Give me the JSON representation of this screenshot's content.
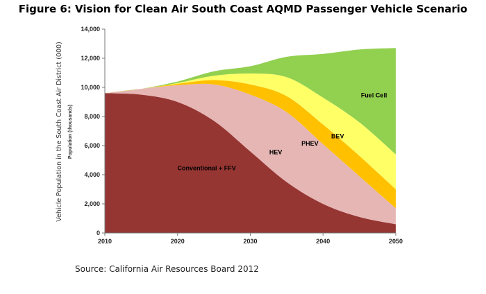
{
  "figure": {
    "title": "Figure 6: Vision for Clean Air South Coast AQMD Passenger Vehicle Scenario",
    "source": "Source: California Air Resources Board 2012"
  },
  "chart_data": {
    "type": "area",
    "stacked": true,
    "title": "",
    "xlabel": "",
    "ylabel": "Vehicle Population in the South Coast Air District (000)",
    "ylabel_secondary": "Population (thousands)",
    "x": [
      2010,
      2015,
      2020,
      2025,
      2030,
      2035,
      2040,
      2045,
      2050
    ],
    "xlim": [
      2010,
      2050
    ],
    "ylim": [
      0,
      14000
    ],
    "x_ticks": [
      2010,
      2020,
      2030,
      2040,
      2050
    ],
    "y_ticks": [
      0,
      2000,
      4000,
      6000,
      8000,
      10000,
      12000,
      14000
    ],
    "y_tick_labels": [
      "0",
      "2,000",
      "4,000",
      "6,000",
      "8,000",
      "10,000",
      "12,000",
      "14,000"
    ],
    "grid": false,
    "legend": "none",
    "series": [
      {
        "name": "Conventional + FFV",
        "color": "#963633",
        "values": [
          9600,
          9500,
          9000,
          7700,
          5600,
          3500,
          2000,
          1100,
          600
        ]
      },
      {
        "name": "HEV",
        "color": "#e6b6b4",
        "values": [
          0,
          400,
          1150,
          2500,
          3900,
          4800,
          4100,
          2800,
          1100
        ]
      },
      {
        "name": "PHEV",
        "color": "#ffc000",
        "values": [
          0,
          0,
          100,
          300,
          700,
          1100,
          1350,
          1400,
          1300
        ]
      },
      {
        "name": "BEV",
        "color": "#ffff66",
        "values": [
          0,
          0,
          50,
          300,
          750,
          1300,
          1850,
          2300,
          2400
        ]
      },
      {
        "name": "Fuel Cell",
        "color": "#92d050",
        "values": [
          0,
          0,
          100,
          300,
          500,
          1400,
          3000,
          5000,
          7300
        ]
      }
    ]
  }
}
